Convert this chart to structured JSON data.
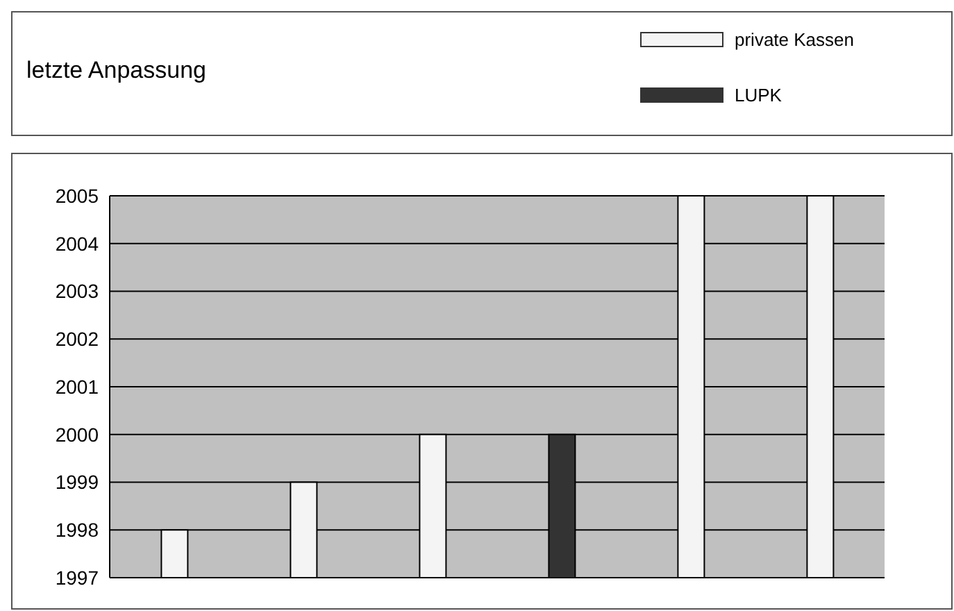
{
  "chart_data": {
    "type": "bar",
    "title": "letzte Anpassung",
    "categories": [
      null,
      null,
      null,
      null,
      null,
      null
    ],
    "series": [
      {
        "name": "private Kassen",
        "color": "#f4f4f4",
        "values": [
          1998,
          1999,
          2000,
          null,
          2005,
          2005
        ]
      },
      {
        "name": "LUPK",
        "color": "#333333",
        "values": [
          null,
          null,
          null,
          2000,
          null,
          null
        ]
      }
    ],
    "ylim": [
      1997,
      2005
    ],
    "yticks": [
      1997,
      1998,
      1999,
      2000,
      2001,
      2002,
      2003,
      2004,
      2005
    ],
    "grid": "y",
    "legend": "top right"
  }
}
